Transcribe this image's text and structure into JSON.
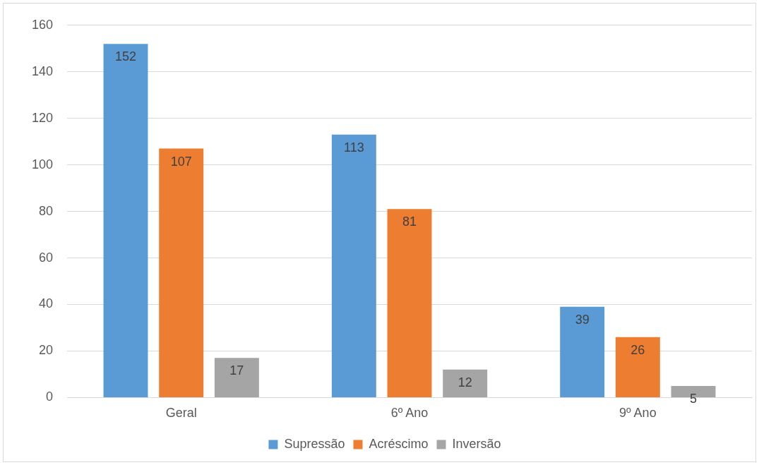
{
  "chart_data": {
    "type": "bar",
    "categories": [
      "Geral",
      "6º Ano",
      "9º Ano"
    ],
    "series": [
      {
        "name": "Supressão",
        "color": "#5b9bd5",
        "values": [
          152,
          113,
          39
        ]
      },
      {
        "name": "Acréscimo",
        "color": "#ed7d31",
        "values": [
          107,
          81,
          26
        ]
      },
      {
        "name": "Inversão",
        "color": "#a5a5a5",
        "values": [
          17,
          12,
          5
        ]
      }
    ],
    "ylim": [
      0,
      160
    ],
    "yticks": [
      0,
      20,
      40,
      60,
      80,
      100,
      120,
      140,
      160
    ],
    "grid": "y",
    "legend": "bottom",
    "data_labels": true
  }
}
